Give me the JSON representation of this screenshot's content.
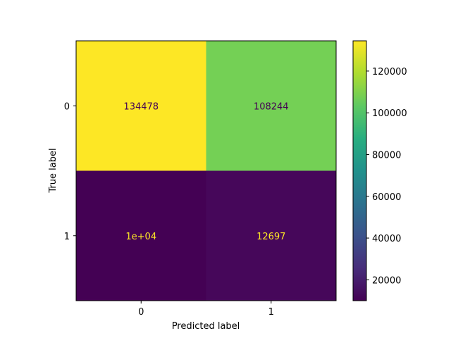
{
  "chart_data": {
    "type": "heatmap",
    "title": "",
    "xlabel": "Predicted label",
    "ylabel": "True label",
    "x_categories": [
      "0",
      "1"
    ],
    "y_categories": [
      "0",
      "1"
    ],
    "cells": [
      {
        "true": "0",
        "predicted": "0",
        "value": 134478,
        "label": "134478",
        "color": "#fde725",
        "text_color": "#440154"
      },
      {
        "true": "0",
        "predicted": "1",
        "value": 108244,
        "label": "108244",
        "color": "#74d055",
        "text_color": "#440154"
      },
      {
        "true": "1",
        "predicted": "0",
        "value": 10000,
        "label": "1e+04",
        "color": "#440154",
        "text_color": "#fde725"
      },
      {
        "true": "1",
        "predicted": "1",
        "value": 12697,
        "label": "12697",
        "color": "#46075a",
        "text_color": "#fde725"
      }
    ],
    "colormap": "viridis",
    "colorbar": {
      "min": 10000,
      "max": 134478,
      "ticks": [
        20000,
        40000,
        60000,
        80000,
        100000,
        120000
      ],
      "tick_labels": [
        "20000",
        "40000",
        "60000",
        "80000",
        "100000",
        "120000"
      ]
    },
    "grid": false
  }
}
